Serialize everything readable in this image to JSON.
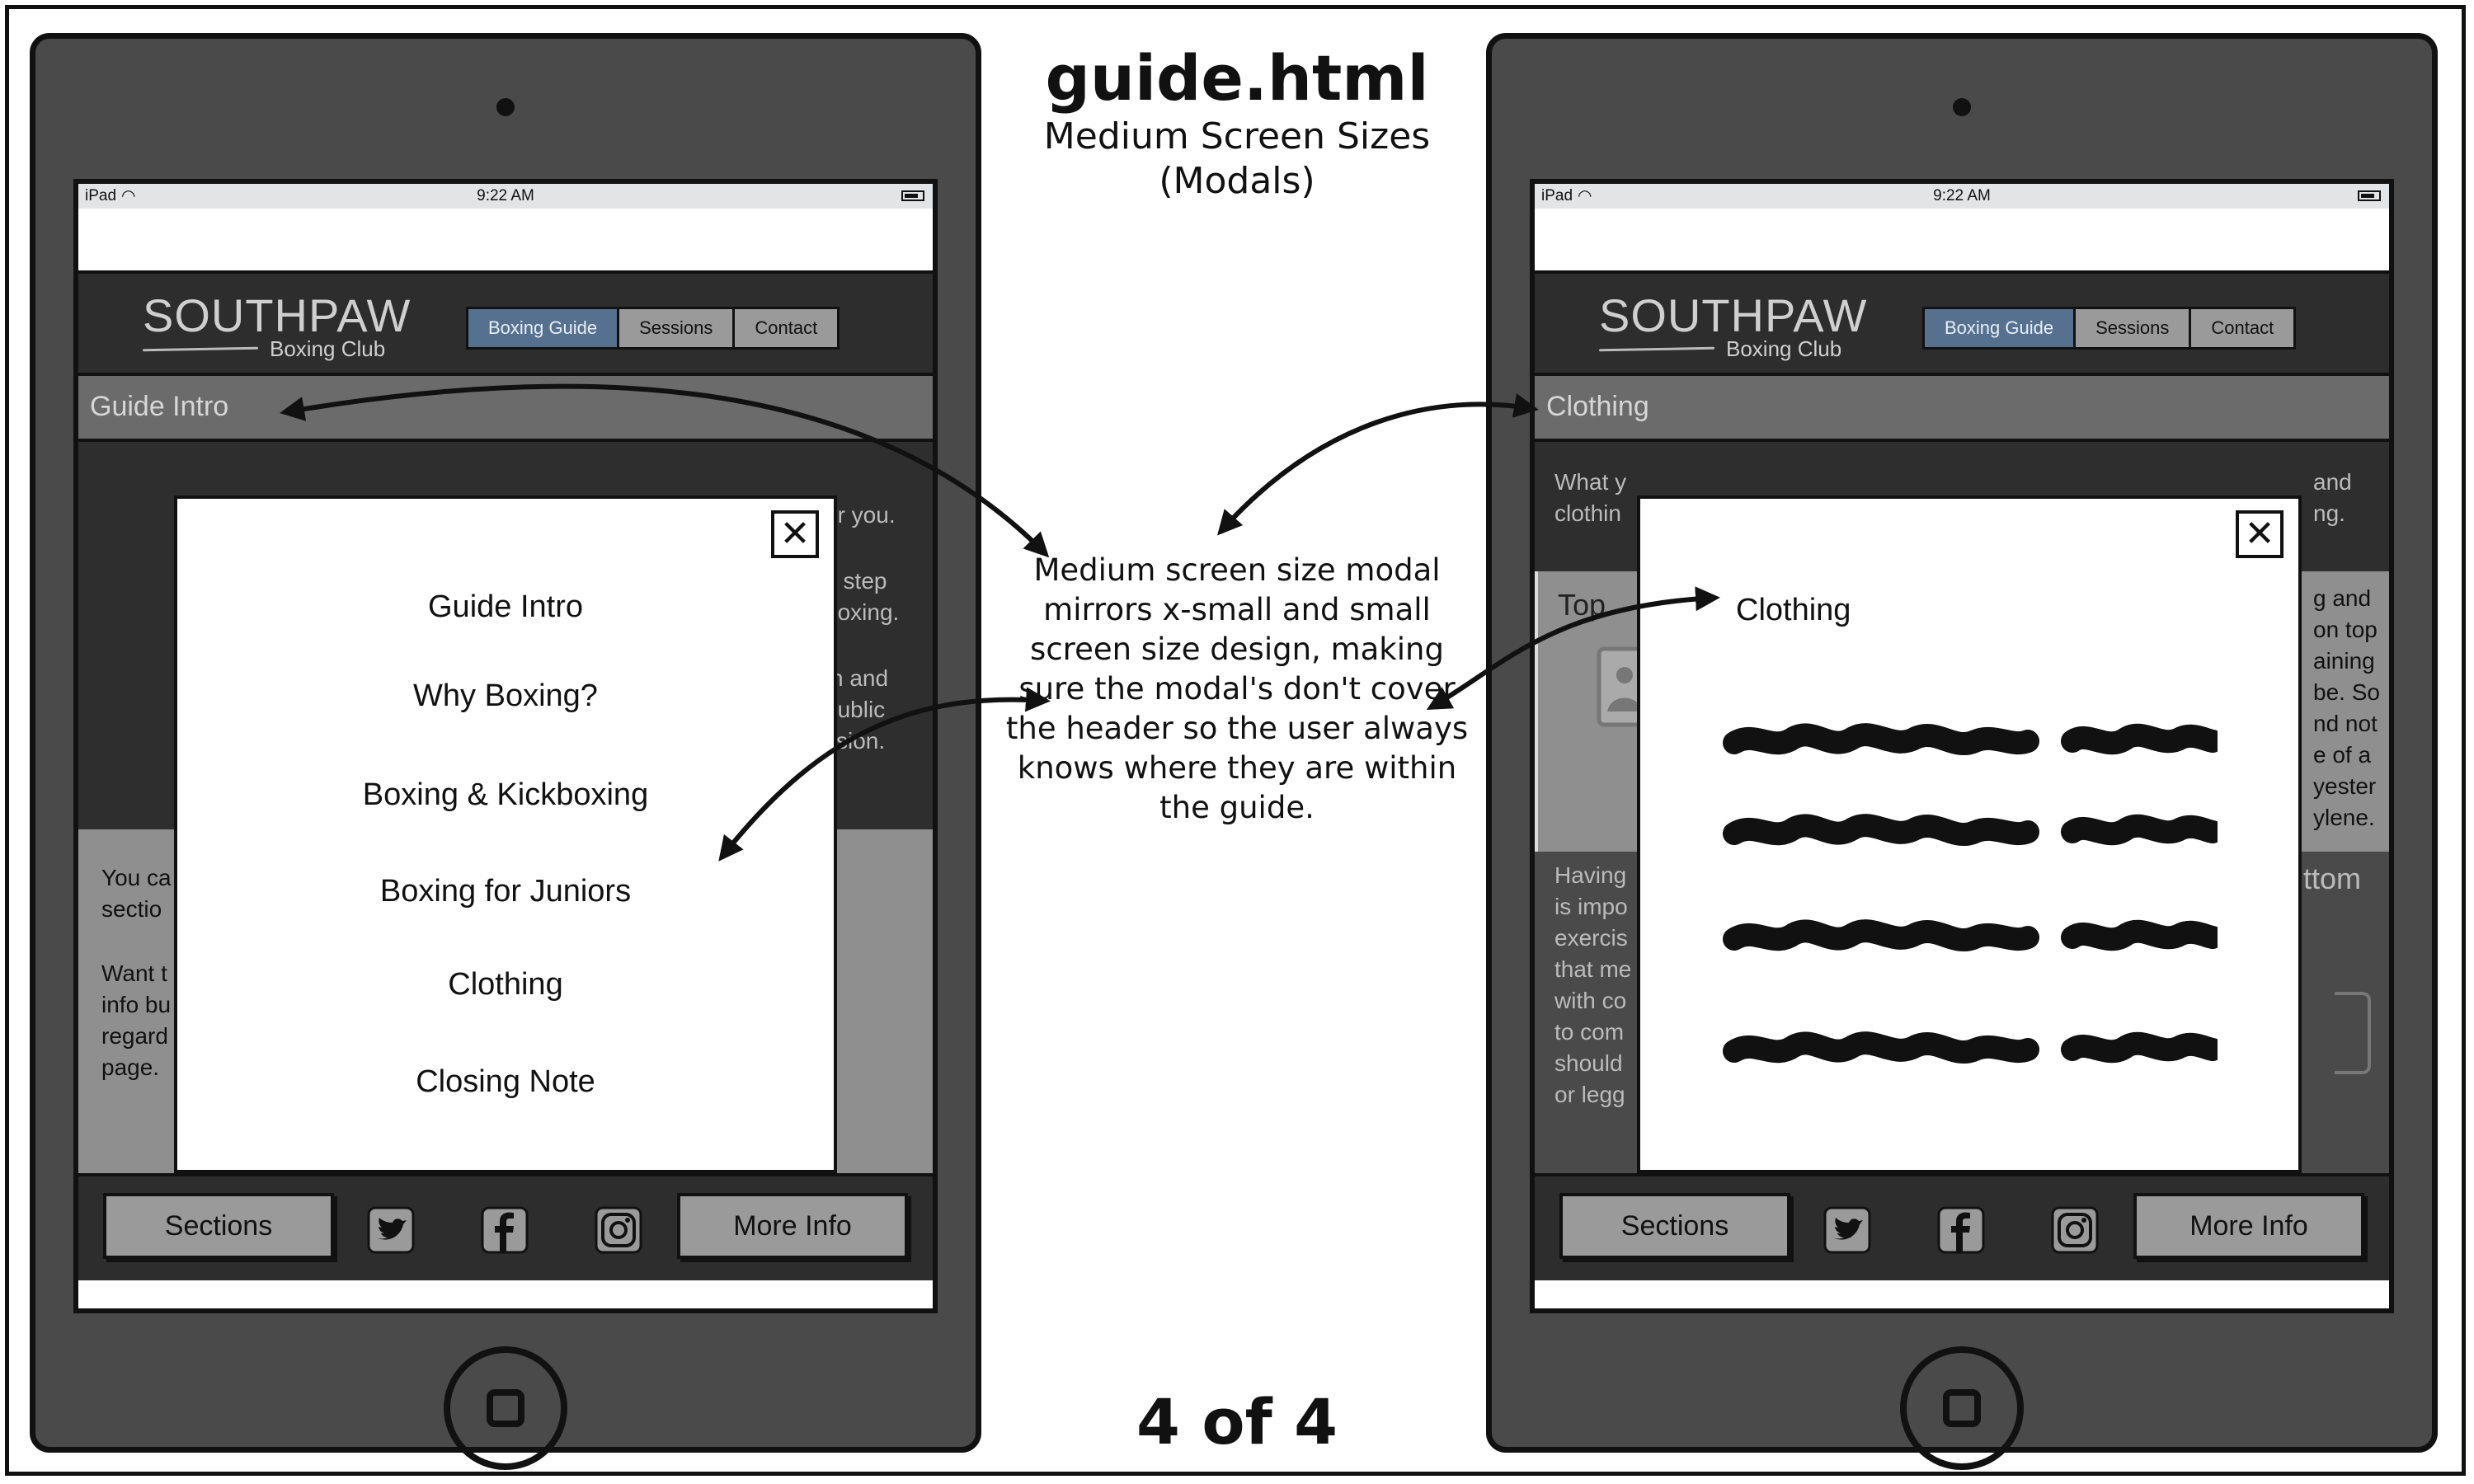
{
  "title": "guide.html",
  "subtitle_line1": "Medium Screen Sizes",
  "subtitle_line2": "(Modals)",
  "annotation": "Medium screen size modal mirrors x-small and small screen size design, making sure the modal's don't cover the header so the user always knows where they are within the guide.",
  "pager": "4 of 4",
  "status": {
    "carrier": "iPad",
    "time": "9:22 AM"
  },
  "brand": {
    "name": "SOUTHPAW",
    "tagline": "Boxing Club"
  },
  "nav": [
    "Boxing Guide",
    "Sessions",
    "Contact"
  ],
  "footer": {
    "sections": "Sections",
    "more_info": "More Info"
  },
  "left_device": {
    "section_title": "Guide Intro",
    "modal_items": [
      "Guide Intro",
      "Why Boxing?",
      "Boxing & Kickboxing",
      "Boxing for Juniors",
      "Clothing",
      "Closing Note"
    ],
    "bg_right": [
      "or you.",
      "t step",
      "boxing.",
      "n and",
      "public",
      "ssion."
    ],
    "bg_left": [
      "You ca",
      "sectio",
      "Want t",
      "info bu",
      "regard",
      "page."
    ]
  },
  "right_device": {
    "section_title": "Clothing",
    "modal_heading": "Clothing",
    "bg_top_left": [
      "What y",
      "clothin"
    ],
    "bg_top_right": [
      "and",
      "ng."
    ],
    "bg_top_label": "Top",
    "bg_mid_right": [
      "g and",
      "on top",
      "aining",
      "be. So",
      "nd not",
      "e of a",
      "yester",
      "ylene."
    ],
    "bg_bottom_label": "ttom",
    "bg_bottom_left": [
      "Having",
      "is impo",
      "exercis",
      "that me",
      "with co",
      "to com",
      "should",
      "or legg"
    ]
  }
}
